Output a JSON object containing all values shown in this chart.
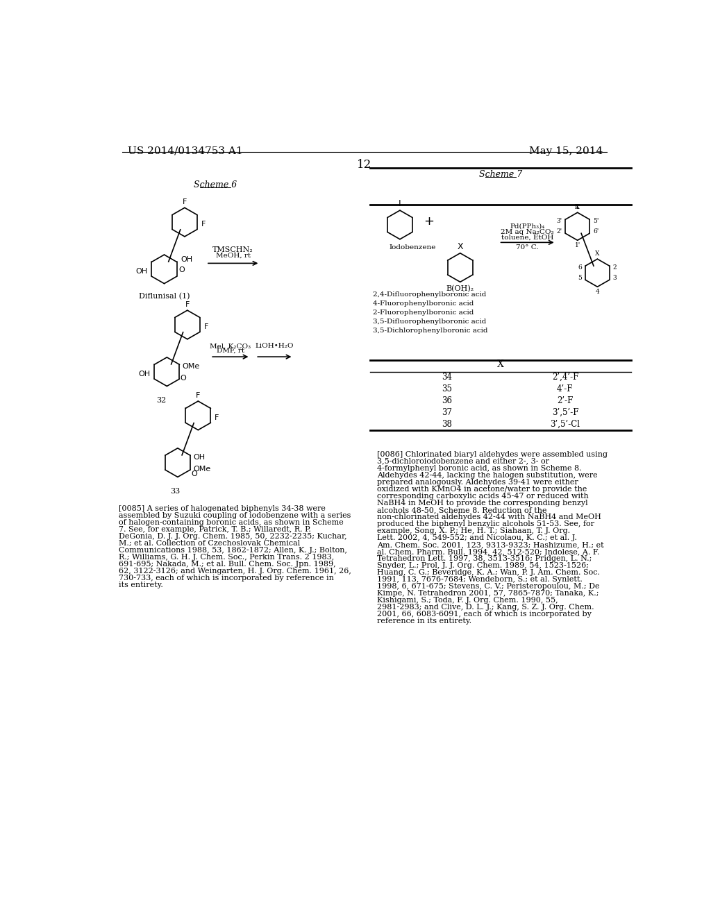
{
  "page_header_left": "US 2014/0134753 A1",
  "page_header_right": "May 15, 2014",
  "page_number": "12",
  "background_color": "#ffffff",
  "text_color": "#000000",
  "scheme6_title": "Scheme 6",
  "scheme7_title": "Scheme 7",
  "table_header_x": "X",
  "table_rows": [
    [
      "34",
      "2’,4’-F"
    ],
    [
      "35",
      "4’-F"
    ],
    [
      "36",
      "2’-F"
    ],
    [
      "37",
      "3’,5’-F"
    ],
    [
      "38",
      "3’,5’-Cl"
    ]
  ],
  "para085_label": "[0085]",
  "para085_text": "A series of halogenated biphenyls 34-38 were assembled by Suzuki coupling of iodobenzene with a series of halogen-containing boronic acids, as shown in Scheme 7. See, for example, Patrick, T. B.; Willaredt, R. P. DeGonia, D. J. J. Org. Chem. 1985, 50, 2232-2235; Kuchar, M.; et al. Collection of Czechoslovak Chemical Communications 1988, 53, 1862-1872; Allen, K. J.; Bolton, R.; Williams, G. H. J. Chem. Soc., Perkin Trans. 2 1983, 691-695; Nakada, M.; et al. Bull. Chem. Soc. Jpn. 1989, 62, 3122-3126; and Weingarten, H. J. Org. Chem. 1961, 26, 730-733, each of which is incorporated by reference in its entirety.",
  "para086_label": "[0086]",
  "para086_text": "Chlorinated biaryl aldehydes were assembled using 3,5-dichloroiodobenzene and either 2-, 3- or 4-formylphenyl boronic acid, as shown in Scheme 8. Aldehydes 42-44, lacking the halogen substitution, were prepared analogously. Aldehydes 39-41 were either oxidized with KMnO4 in acetone/water to provide the corresponding carboxylic acids 45-47 or reduced with NaBH4 in MeOH to provide the corresponding benzyl alcohols 48-50, Scheme 8. Reduction of the non-chlorinated aldehydes 42-44 with NaBH4 and MeOH produced the biphenyl benzylic alcohols 51-53. See, for example, Song, X. P.; He, H. T.; Siahaan, T. J. Org. Lett. 2002, 4, 549-552; and Nicolaou, K. C.; et al. J. Am. Chem. Soc. 2001, 123, 9313-9323; Hashizume, H.; et al. Chem. Pharm. Bull. 1994, 42, 512-520; Indolese, A. F. Tetrahedron Lett. 1997, 38, 3513-3516; Pridgen, L. N.; Snyder, L.; Prol, J. J. Org. Chem. 1989, 54, 1523-1526; Huang, C. G.; Beveridge, K. A.; Wan, P. J. Am. Chem. Soc. 1991, 113, 7676-7684; Wendeborn, S.; et al. Synlett. 1998, 6, 671-675; Stevens, C. V.; Peristeropoulou, M.; De Kimpe, N. Tetrahedron 2001, 57, 7865-7870; Tanaka, K.; Kishigami, S.; Toda, F. J. Org. Chem. 1990, 55, 2981-2983; and Clive, D. L. J.; Kang, S. Z. J. Org. Chem. 2001, 66, 6083-6091, each of which is incorporated by reference in its entirety."
}
